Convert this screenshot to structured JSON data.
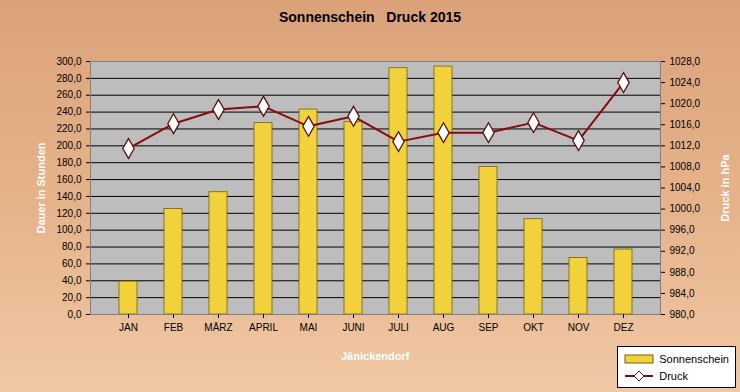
{
  "chart_data": {
    "type": "bar",
    "title": "Sonnenschein   Druck 2015",
    "x_label": "Jänickendorf",
    "y_label": "Dauer in Stunden",
    "y2_label": "Druck in hPa",
    "categories": [
      "JAN",
      "FEB",
      "MÄRZ",
      "APRIL",
      "MAI",
      "JUNI",
      "JULI",
      "AUG",
      "SEP",
      "OKT",
      "NOV",
      "DEZ"
    ],
    "series": [
      {
        "name": "Sonnenschein",
        "type": "bar",
        "color": "#f2d23c",
        "values": [
          39,
          125,
          145,
          227,
          243,
          228,
          292,
          294,
          175,
          113,
          67,
          77
        ]
      },
      {
        "name": "Druck",
        "type": "line",
        "axis": "y2",
        "color": "#8b0a0a",
        "marker": "diamond",
        "values": [
          1011.5,
          1016.2,
          1018.9,
          1019.5,
          1015.7,
          1017.6,
          1012.8,
          1014.5,
          1014.5,
          1016.4,
          1013.0,
          1024.0
        ]
      }
    ],
    "ylim": [
      0,
      300
    ],
    "yticks": [
      {
        "value": 0,
        "label": "0,0"
      },
      {
        "value": 20,
        "label": "20,0"
      },
      {
        "value": 40,
        "label": "40,0"
      },
      {
        "value": 60,
        "label": "60,0"
      },
      {
        "value": 80,
        "label": "80,0"
      },
      {
        "value": 100,
        "label": "100,0"
      },
      {
        "value": 120,
        "label": "120,0"
      },
      {
        "value": 140,
        "label": "140,0"
      },
      {
        "value": 160,
        "label": "160,0"
      },
      {
        "value": 180,
        "label": "180,0"
      },
      {
        "value": 200,
        "label": "200,0"
      },
      {
        "value": 220,
        "label": "220,0"
      },
      {
        "value": 240,
        "label": "240,0"
      },
      {
        "value": 260,
        "label": "260,0"
      },
      {
        "value": 280,
        "label": "280,0"
      },
      {
        "value": 300,
        "label": "300,0"
      }
    ],
    "y2lim": [
      980,
      1028
    ],
    "y2ticks": [
      {
        "value": 980,
        "label": "980,0"
      },
      {
        "value": 984,
        "label": "984,0"
      },
      {
        "value": 988,
        "label": "988,0"
      },
      {
        "value": 992,
        "label": "992,0"
      },
      {
        "value": 996,
        "label": "996,0"
      },
      {
        "value": 1000,
        "label": "1000,0"
      },
      {
        "value": 1004,
        "label": "1004,0"
      },
      {
        "value": 1008,
        "label": "1008,0"
      },
      {
        "value": 1012,
        "label": "1012,0"
      },
      {
        "value": 1016,
        "label": "1016,0"
      },
      {
        "value": 1020,
        "label": "1020,0"
      },
      {
        "value": 1024,
        "label": "1024,0"
      },
      {
        "value": 1028,
        "label": "1028,0"
      }
    ],
    "grid": true,
    "legend": "bottom-right"
  }
}
